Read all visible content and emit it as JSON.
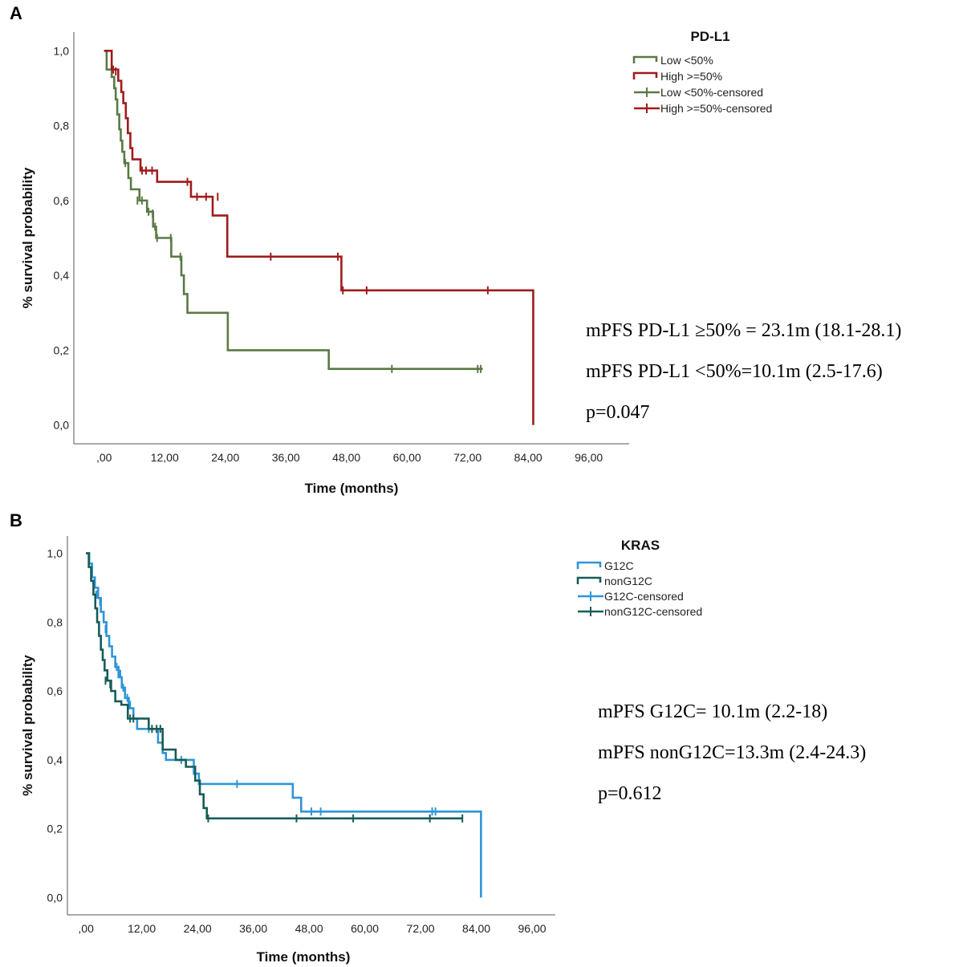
{
  "chart_data": [
    {
      "type": "line",
      "subtype": "kaplan-meier",
      "panel_label": "A",
      "xlabel": "Time (months)",
      "ylabel": "% survival probability",
      "x_ticks": [
        ",00",
        "12,00",
        "24,00",
        "36,00",
        "48,00",
        "60,00",
        "72,00",
        "84,00",
        "96,00"
      ],
      "x_tick_values": [
        0,
        12,
        24,
        36,
        48,
        60,
        72,
        84,
        96
      ],
      "y_ticks": [
        "0,0",
        "0,2",
        "0,4",
        "0,6",
        "0,8",
        "1,0"
      ],
      "y_tick_values": [
        0,
        0.2,
        0.4,
        0.6,
        0.8,
        1.0
      ],
      "xlim": [
        -6,
        104
      ],
      "ylim": [
        -0.05,
        1.05
      ],
      "legend_title": "PD-L1",
      "legend_position": "top-right",
      "legend": [
        "Low <50%",
        "High >=50%",
        "Low <50%-censored",
        "High >=50%-censored"
      ],
      "series": [
        {
          "name": "Low <50%",
          "color": "#5a7a45",
          "steps": [
            [
              0,
              1.0
            ],
            [
              0.5,
              0.95
            ],
            [
              1.5,
              0.93
            ],
            [
              2,
              0.9
            ],
            [
              2.3,
              0.87
            ],
            [
              2.6,
              0.83
            ],
            [
              3,
              0.79
            ],
            [
              3.3,
              0.76
            ],
            [
              3.6,
              0.73
            ],
            [
              4,
              0.7
            ],
            [
              4.8,
              0.66
            ],
            [
              5.3,
              0.63
            ],
            [
              7,
              0.6
            ],
            [
              8.5,
              0.57
            ],
            [
              9.7,
              0.53
            ],
            [
              10.3,
              0.5
            ],
            [
              13.3,
              0.45
            ],
            [
              15.3,
              0.4
            ],
            [
              15.8,
              0.35
            ],
            [
              16.5,
              0.3
            ],
            [
              24.5,
              0.2
            ],
            [
              44.5,
              0.15
            ]
          ],
          "end": 75,
          "censored": [
            [
              4.2,
              0.7
            ],
            [
              6.6,
              0.6
            ],
            [
              7.5,
              0.6
            ],
            [
              8.8,
              0.57
            ],
            [
              9.6,
              0.565
            ],
            [
              10.1,
              0.53
            ],
            [
              10.5,
              0.5
            ],
            [
              13.2,
              0.5
            ],
            [
              15.1,
              0.45
            ],
            [
              57,
              0.15
            ],
            [
              74,
              0.15
            ],
            [
              74.6,
              0.15
            ]
          ]
        },
        {
          "name": "High >=50%",
          "color": "#a01c1c",
          "steps": [
            [
              0,
              1.0
            ],
            [
              1.5,
              0.95
            ],
            [
              2.8,
              0.92
            ],
            [
              3.4,
              0.89
            ],
            [
              3.8,
              0.86
            ],
            [
              4.3,
              0.82
            ],
            [
              4.7,
              0.78
            ],
            [
              5.2,
              0.74
            ],
            [
              5.6,
              0.71
            ],
            [
              7.2,
              0.68
            ],
            [
              10.5,
              0.65
            ],
            [
              17.2,
              0.61
            ],
            [
              21.5,
              0.56
            ],
            [
              24.4,
              0.45
            ],
            [
              47,
              0.36
            ],
            [
              85,
              0.0
            ]
          ],
          "end": 85,
          "censored": [
            [
              1.8,
              0.95
            ],
            [
              2.3,
              0.945
            ],
            [
              7.5,
              0.68
            ],
            [
              8.3,
              0.68
            ],
            [
              9.5,
              0.68
            ],
            [
              16.5,
              0.65
            ],
            [
              18.4,
              0.61
            ],
            [
              20.2,
              0.61
            ],
            [
              22.5,
              0.61
            ],
            [
              33,
              0.45
            ],
            [
              46.3,
              0.45
            ],
            [
              47.3,
              0.36
            ],
            [
              52,
              0.36
            ],
            [
              76,
              0.36
            ]
          ]
        }
      ],
      "annotations": [
        "mPFS PD-L1 ≥50% = 23.1m (18.1-28.1)",
        "mPFS PD-L1 <50%=10.1m (2.5-17.6)",
        "p=0.047"
      ]
    },
    {
      "type": "line",
      "subtype": "kaplan-meier",
      "panel_label": "B",
      "xlabel": "Time (months)",
      "ylabel": "% survival probability",
      "x_ticks": [
        ",00",
        "12,00",
        "24,00",
        "36,00",
        "48,00",
        "60,00",
        "72,00",
        "84,00",
        "96,00"
      ],
      "x_tick_values": [
        0,
        12,
        24,
        36,
        48,
        60,
        72,
        84,
        96
      ],
      "y_ticks": [
        "0,0",
        "0,2",
        "0,4",
        "0,6",
        "0,8",
        "1,0"
      ],
      "y_tick_values": [
        0,
        0.2,
        0.4,
        0.6,
        0.8,
        1.0
      ],
      "xlim": [
        -4,
        101
      ],
      "ylim": [
        -0.05,
        1.05
      ],
      "legend_title": "KRAS",
      "legend_position": "top-right",
      "legend": [
        "G12C",
        "nonG12C",
        "G12C-censored",
        "nonG12C-censored"
      ],
      "series": [
        {
          "name": "G12C",
          "color": "#2f95d8",
          "steps": [
            [
              0,
              1.0
            ],
            [
              0.7,
              0.97
            ],
            [
              1.3,
              0.93
            ],
            [
              1.9,
              0.9
            ],
            [
              2.6,
              0.87
            ],
            [
              3.2,
              0.83
            ],
            [
              3.8,
              0.8
            ],
            [
              4.4,
              0.76
            ],
            [
              5,
              0.73
            ],
            [
              5.6,
              0.7
            ],
            [
              6.3,
              0.67
            ],
            [
              7,
              0.64
            ],
            [
              7.7,
              0.61
            ],
            [
              8.4,
              0.58
            ],
            [
              9.2,
              0.55
            ],
            [
              10.2,
              0.52
            ],
            [
              11,
              0.49
            ],
            [
              15.5,
              0.45
            ],
            [
              16.5,
              0.42
            ],
            [
              17.2,
              0.4
            ],
            [
              23.2,
              0.36
            ],
            [
              24.3,
              0.33
            ],
            [
              44.5,
              0.29
            ],
            [
              46.3,
              0.25
            ],
            [
              85,
              0.0
            ]
          ],
          "end": 85,
          "censored": [
            [
              2.2,
              0.88
            ],
            [
              3,
              0.86
            ],
            [
              4.2,
              0.78
            ],
            [
              6.6,
              0.67
            ],
            [
              7.4,
              0.65
            ],
            [
              8,
              0.61
            ],
            [
              8.9,
              0.58
            ],
            [
              9.5,
              0.56
            ],
            [
              13.5,
              0.49
            ],
            [
              20.5,
              0.4
            ],
            [
              32.5,
              0.33
            ],
            [
              48.5,
              0.25
            ],
            [
              50.5,
              0.25
            ],
            [
              74.5,
              0.25
            ],
            [
              75.2,
              0.25
            ]
          ]
        },
        {
          "name": "nonG12C",
          "color": "#175c58",
          "steps": [
            [
              0,
              1.0
            ],
            [
              0.6,
              0.96
            ],
            [
              1.1,
              0.92
            ],
            [
              1.6,
              0.88
            ],
            [
              2,
              0.84
            ],
            [
              2.4,
              0.8
            ],
            [
              2.8,
              0.76
            ],
            [
              3.2,
              0.72
            ],
            [
              3.6,
              0.69
            ],
            [
              4,
              0.66
            ],
            [
              4.6,
              0.63
            ],
            [
              5.4,
              0.6
            ],
            [
              6.3,
              0.57
            ],
            [
              7.6,
              0.56
            ],
            [
              9,
              0.52
            ],
            [
              13.5,
              0.49
            ],
            [
              16.5,
              0.43
            ],
            [
              19.3,
              0.4
            ],
            [
              21.5,
              0.38
            ],
            [
              23.5,
              0.34
            ],
            [
              24.5,
              0.3
            ],
            [
              25.3,
              0.26
            ],
            [
              26,
              0.23
            ]
          ],
          "end": 81,
          "censored": [
            [
              4.2,
              0.63
            ],
            [
              5.2,
              0.62
            ],
            [
              9.5,
              0.52
            ],
            [
              10.2,
              0.52
            ],
            [
              14.2,
              0.49
            ],
            [
              15.2,
              0.49
            ],
            [
              16,
              0.49
            ],
            [
              26.3,
              0.23
            ],
            [
              45.3,
              0.23
            ],
            [
              57.5,
              0.23
            ],
            [
              74,
              0.23
            ],
            [
              81,
              0.23
            ]
          ]
        }
      ],
      "annotations": [
        "mPFS G12C= 10.1m (2.2-18)",
        "mPFS nonG12C=13.3m (2.4-24.3)",
        "p=0.612"
      ]
    }
  ]
}
